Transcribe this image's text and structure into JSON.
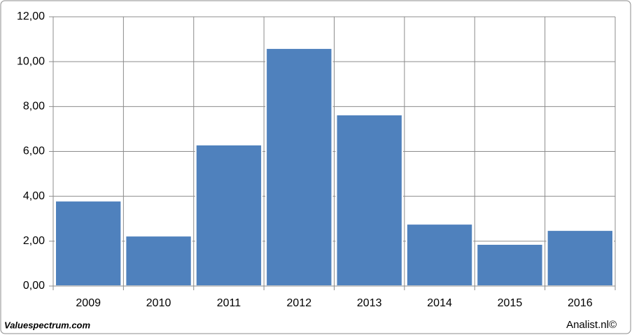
{
  "chart_data": {
    "type": "bar",
    "categories": [
      "2009",
      "2010",
      "2011",
      "2012",
      "2013",
      "2014",
      "2015",
      "2016"
    ],
    "values": [
      3.8,
      2.24,
      6.3,
      10.6,
      7.64,
      2.77,
      1.87,
      2.49
    ],
    "color": "#4f81bd",
    "ylim": [
      0,
      12
    ],
    "yticks": [
      {
        "value": 0,
        "label": "0,00"
      },
      {
        "value": 2,
        "label": "2,00"
      },
      {
        "value": 4,
        "label": "4,00"
      },
      {
        "value": 6,
        "label": "6,00"
      },
      {
        "value": 8,
        "label": "8,00"
      },
      {
        "value": 10,
        "label": "10,00"
      },
      {
        "value": 12,
        "label": "12,00"
      }
    ],
    "grid": true
  },
  "footer": {
    "left": "Valuespectrum.com",
    "right": "Analist.nl©"
  }
}
